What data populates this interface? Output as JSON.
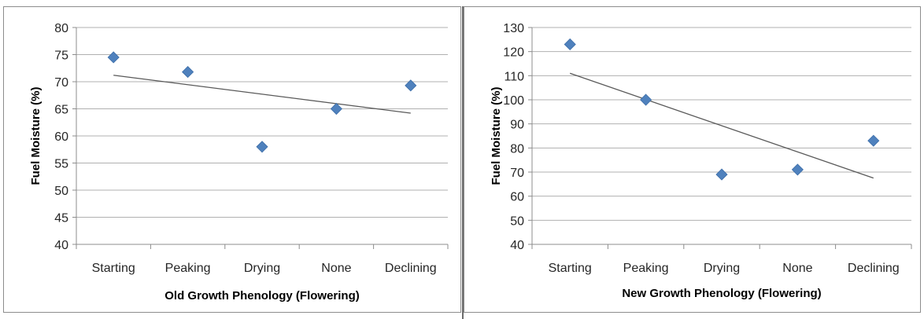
{
  "chart_data": [
    {
      "type": "scatter",
      "title": "",
      "xlabel": "Old Growth Phenology (Flowering)",
      "ylabel": "Fuel Moisture (%)",
      "categories": [
        "Starting",
        "Peaking",
        "Drying",
        "None",
        "Declining"
      ],
      "series": [
        {
          "values": [
            74.5,
            71.8,
            58.0,
            65.0,
            69.3
          ]
        }
      ],
      "trendline": {
        "type": "linear",
        "start": 71.2,
        "end": 64.2
      },
      "ylim": [
        40,
        80
      ],
      "yticks": [
        "40",
        "45",
        "50",
        "55",
        "60",
        "65",
        "70",
        "75",
        "80"
      ],
      "grid": true,
      "marker_color": "#4f81bd",
      "trendline_color": "#595959"
    },
    {
      "type": "scatter",
      "title": "",
      "xlabel": "New Growth Phenology (Flowering)",
      "ylabel": "Fuel Moisture (%)",
      "categories": [
        "Starting",
        "Peaking",
        "Drying",
        "None",
        "Declining"
      ],
      "series": [
        {
          "values": [
            123,
            100,
            69,
            71,
            83
          ]
        }
      ],
      "trendline": {
        "type": "linear",
        "start": 111,
        "end": 67.5
      },
      "ylim": [
        40,
        130
      ],
      "yticks": [
        "40",
        "50",
        "60",
        "70",
        "80",
        "90",
        "100",
        "110",
        "120",
        "130"
      ],
      "grid": true,
      "marker_color": "#4f81bd",
      "trendline_color": "#595959"
    }
  ]
}
